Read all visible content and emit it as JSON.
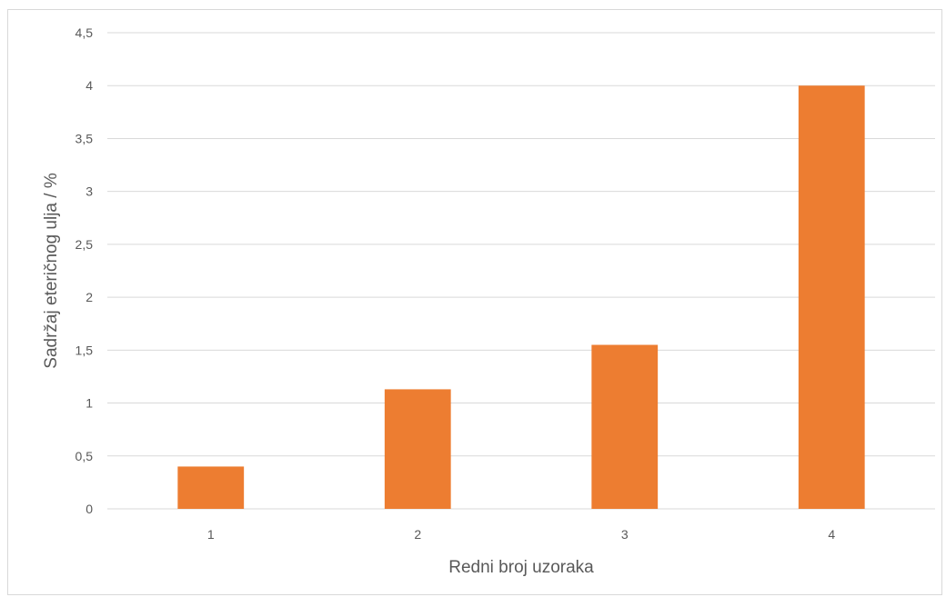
{
  "chart_data": {
    "type": "bar",
    "categories": [
      "1",
      "2",
      "3",
      "4"
    ],
    "values": [
      0.4,
      1.13,
      1.55,
      4.0
    ],
    "title": "",
    "xlabel": "Redni broj uzoraka",
    "ylabel": "Sadržaj eteričnog ulja / %",
    "ylim": [
      0,
      4.5
    ],
    "yticks": [
      "0",
      "0,5",
      "1",
      "1,5",
      "2",
      "2,5",
      "3",
      "3,5",
      "4",
      "4,5"
    ],
    "grid": true,
    "bar_color": "#ED7D31",
    "grid_color": "#D9D9D9",
    "text_color": "#595959"
  }
}
